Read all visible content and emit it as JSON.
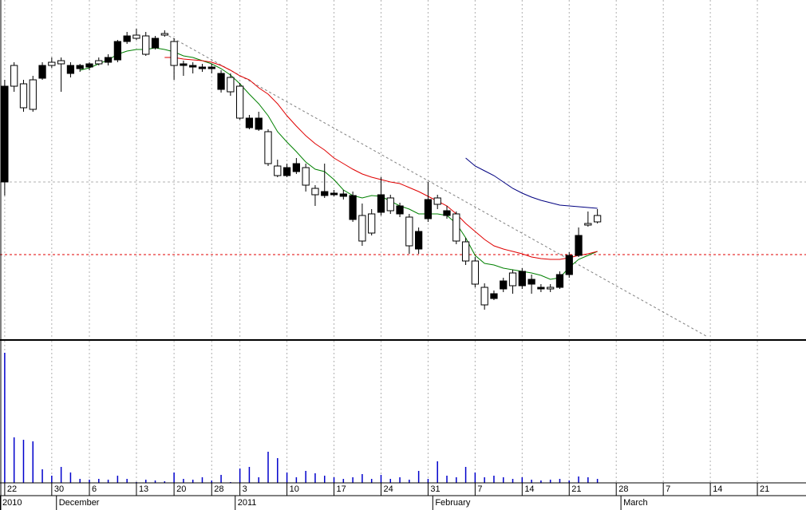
{
  "chart_data": {
    "type": "candlestick",
    "xlim": [
      -0.5,
      85
    ],
    "ylim": [
      0,
      425
    ],
    "open": [
      317,
      317,
      290,
      288,
      343,
      343,
      345,
      343,
      343,
      345,
      345,
      353,
      373,
      380,
      377,
      357,
      377,
      381,
      343,
      345,
      343,
      341,
      341,
      333,
      310,
      277,
      277,
      277,
      220,
      205,
      215,
      220,
      193,
      181,
      185,
      183,
      182,
      180,
      123,
      133,
      181,
      161,
      167,
      117,
      135,
      175,
      169,
      161,
      123,
      98,
      69,
      43,
      57,
      73,
      67,
      85,
      75,
      65,
      63,
      81,
      105,
      130,
      143,
      147
    ],
    "close": [
      197,
      343,
      320,
      325,
      327,
      347,
      349,
      333,
      339,
      341,
      349,
      347,
      350,
      373,
      381,
      380,
      365,
      383,
      373,
      343,
      341,
      339,
      339,
      313,
      328,
      317,
      265,
      263,
      260,
      217,
      205,
      210,
      215,
      189,
      180,
      181,
      179,
      150,
      155,
      157,
      159,
      177,
      157,
      153,
      113,
      151,
      177,
      155,
      157,
      122,
      98,
      65,
      51,
      63,
      83,
      67,
      69,
      63,
      65,
      65,
      81,
      105,
      145,
      155
    ],
    "high": [
      325,
      347,
      325,
      330,
      347,
      353,
      353,
      347,
      345,
      347,
      353,
      357,
      375,
      385,
      389,
      385,
      380,
      387,
      377,
      349,
      347,
      345,
      345,
      337,
      333,
      321,
      281,
      285,
      263,
      225,
      220,
      227,
      220,
      193,
      220,
      187,
      187,
      185,
      170,
      163,
      203,
      181,
      171,
      157,
      140,
      197,
      181,
      167,
      160,
      127,
      103,
      70,
      61,
      77,
      87,
      89,
      81,
      69,
      69,
      85,
      109,
      140,
      160,
      163
    ],
    "low": [
      180,
      310,
      285,
      285,
      325,
      340,
      310,
      328,
      335,
      337,
      343,
      343,
      347,
      370,
      375,
      355,
      363,
      379,
      325,
      330,
      333,
      335,
      333,
      309,
      305,
      275,
      263,
      261,
      217,
      203,
      203,
      207,
      185,
      167,
      177,
      179,
      175,
      147,
      117,
      130,
      155,
      157,
      153,
      107,
      107,
      147,
      163,
      151,
      119,
      93,
      65,
      37,
      49,
      59,
      57,
      63,
      57,
      59,
      59,
      63,
      77,
      103,
      141,
      145
    ],
    "up_color": "#ffffff",
    "down_color": "#000000",
    "lines": [
      {
        "color": "#008000",
        "values": [
          null,
          null,
          null,
          null,
          null,
          null,
          null,
          null,
          337,
          340,
          345,
          350,
          357,
          361,
          363,
          363,
          365,
          363,
          360,
          355,
          353,
          349,
          345,
          339,
          331,
          320,
          307,
          295,
          280,
          260,
          247,
          235,
          222,
          213,
          210,
          200,
          187,
          180,
          177,
          180,
          179,
          173,
          167,
          163,
          157,
          157,
          157,
          155,
          145,
          127,
          105,
          95,
          93,
          89,
          87,
          85,
          83,
          80,
          75,
          77,
          90,
          100,
          105,
          110
        ]
      },
      {
        "color": "#e00000",
        "values": [
          null,
          null,
          null,
          null,
          null,
          null,
          null,
          null,
          null,
          null,
          null,
          null,
          null,
          null,
          null,
          null,
          null,
          353,
          353,
          351,
          350,
          349,
          347,
          343,
          337,
          330,
          325,
          315,
          307,
          295,
          280,
          267,
          255,
          245,
          237,
          227,
          220,
          213,
          207,
          203,
          200,
          197,
          195,
          190,
          185,
          179,
          173,
          167,
          157,
          145,
          135,
          125,
          117,
          113,
          110,
          107,
          103,
          101,
          100,
          100,
          102,
          105,
          107,
          110
        ]
      },
      {
        "color": "#000080",
        "values": [
          null,
          null,
          null,
          null,
          null,
          null,
          null,
          null,
          null,
          null,
          null,
          null,
          null,
          null,
          null,
          null,
          null,
          null,
          null,
          null,
          null,
          null,
          null,
          null,
          null,
          null,
          null,
          null,
          null,
          null,
          null,
          null,
          null,
          null,
          null,
          null,
          null,
          null,
          null,
          null,
          null,
          null,
          null,
          null,
          null,
          null,
          null,
          null,
          null,
          227,
          217,
          211,
          205,
          197,
          189,
          183,
          178,
          174,
          171,
          168,
          167,
          166,
          165,
          164
        ]
      }
    ],
    "trendline": {
      "x": [
        17,
        74.7
      ],
      "y": [
        383,
        3
      ],
      "color": "#808080"
    },
    "hlines": [
      {
        "value": 106,
        "color": "#e00000"
      },
      {
        "value": 197,
        "color": "#b0b0b0"
      }
    ],
    "volume": {
      "color": "#0000cc",
      "ylim": [
        0,
        178
      ],
      "values": [
        163,
        57,
        54,
        52,
        17,
        9,
        20,
        13,
        5,
        4,
        5,
        4,
        9,
        5,
        1,
        4,
        3,
        2,
        13,
        5,
        4,
        7,
        3,
        10,
        1,
        18,
        20,
        7,
        39,
        31,
        13,
        7,
        15,
        12,
        9,
        7,
        5,
        7,
        11,
        5,
        10,
        5,
        7,
        4,
        15,
        5,
        27,
        9,
        7,
        20,
        13,
        7,
        9,
        7,
        5,
        7,
        4,
        3,
        4,
        5,
        3,
        8,
        7,
        5
      ]
    },
    "xticks": [
      {
        "value": 0,
        "label": "22"
      },
      {
        "value": 5,
        "label": "30"
      },
      {
        "value": 9,
        "label": "6"
      },
      {
        "value": 14,
        "label": "13"
      },
      {
        "value": 18,
        "label": "20"
      },
      {
        "value": 22,
        "label": "28"
      },
      {
        "value": 25,
        "label": "3"
      },
      {
        "value": 30,
        "label": "10"
      },
      {
        "value": 35,
        "label": "17"
      },
      {
        "value": 40,
        "label": "24"
      },
      {
        "value": 45,
        "label": "31"
      },
      {
        "value": 50,
        "label": "7"
      },
      {
        "value": 55,
        "label": "14"
      },
      {
        "value": 60,
        "label": "21"
      },
      {
        "value": 65,
        "label": "28"
      },
      {
        "value": 70,
        "label": "7"
      },
      {
        "value": 75,
        "label": "14"
      },
      {
        "value": 80,
        "label": "21"
      }
    ],
    "month_ticks": [
      {
        "value": -0.5,
        "label": "2010"
      },
      {
        "value": 5.5,
        "label": "December"
      },
      {
        "value": 24.5,
        "label": "2011"
      },
      {
        "value": 45.5,
        "label": "February"
      },
      {
        "value": 65.5,
        "label": "March"
      }
    ],
    "grid": true
  }
}
